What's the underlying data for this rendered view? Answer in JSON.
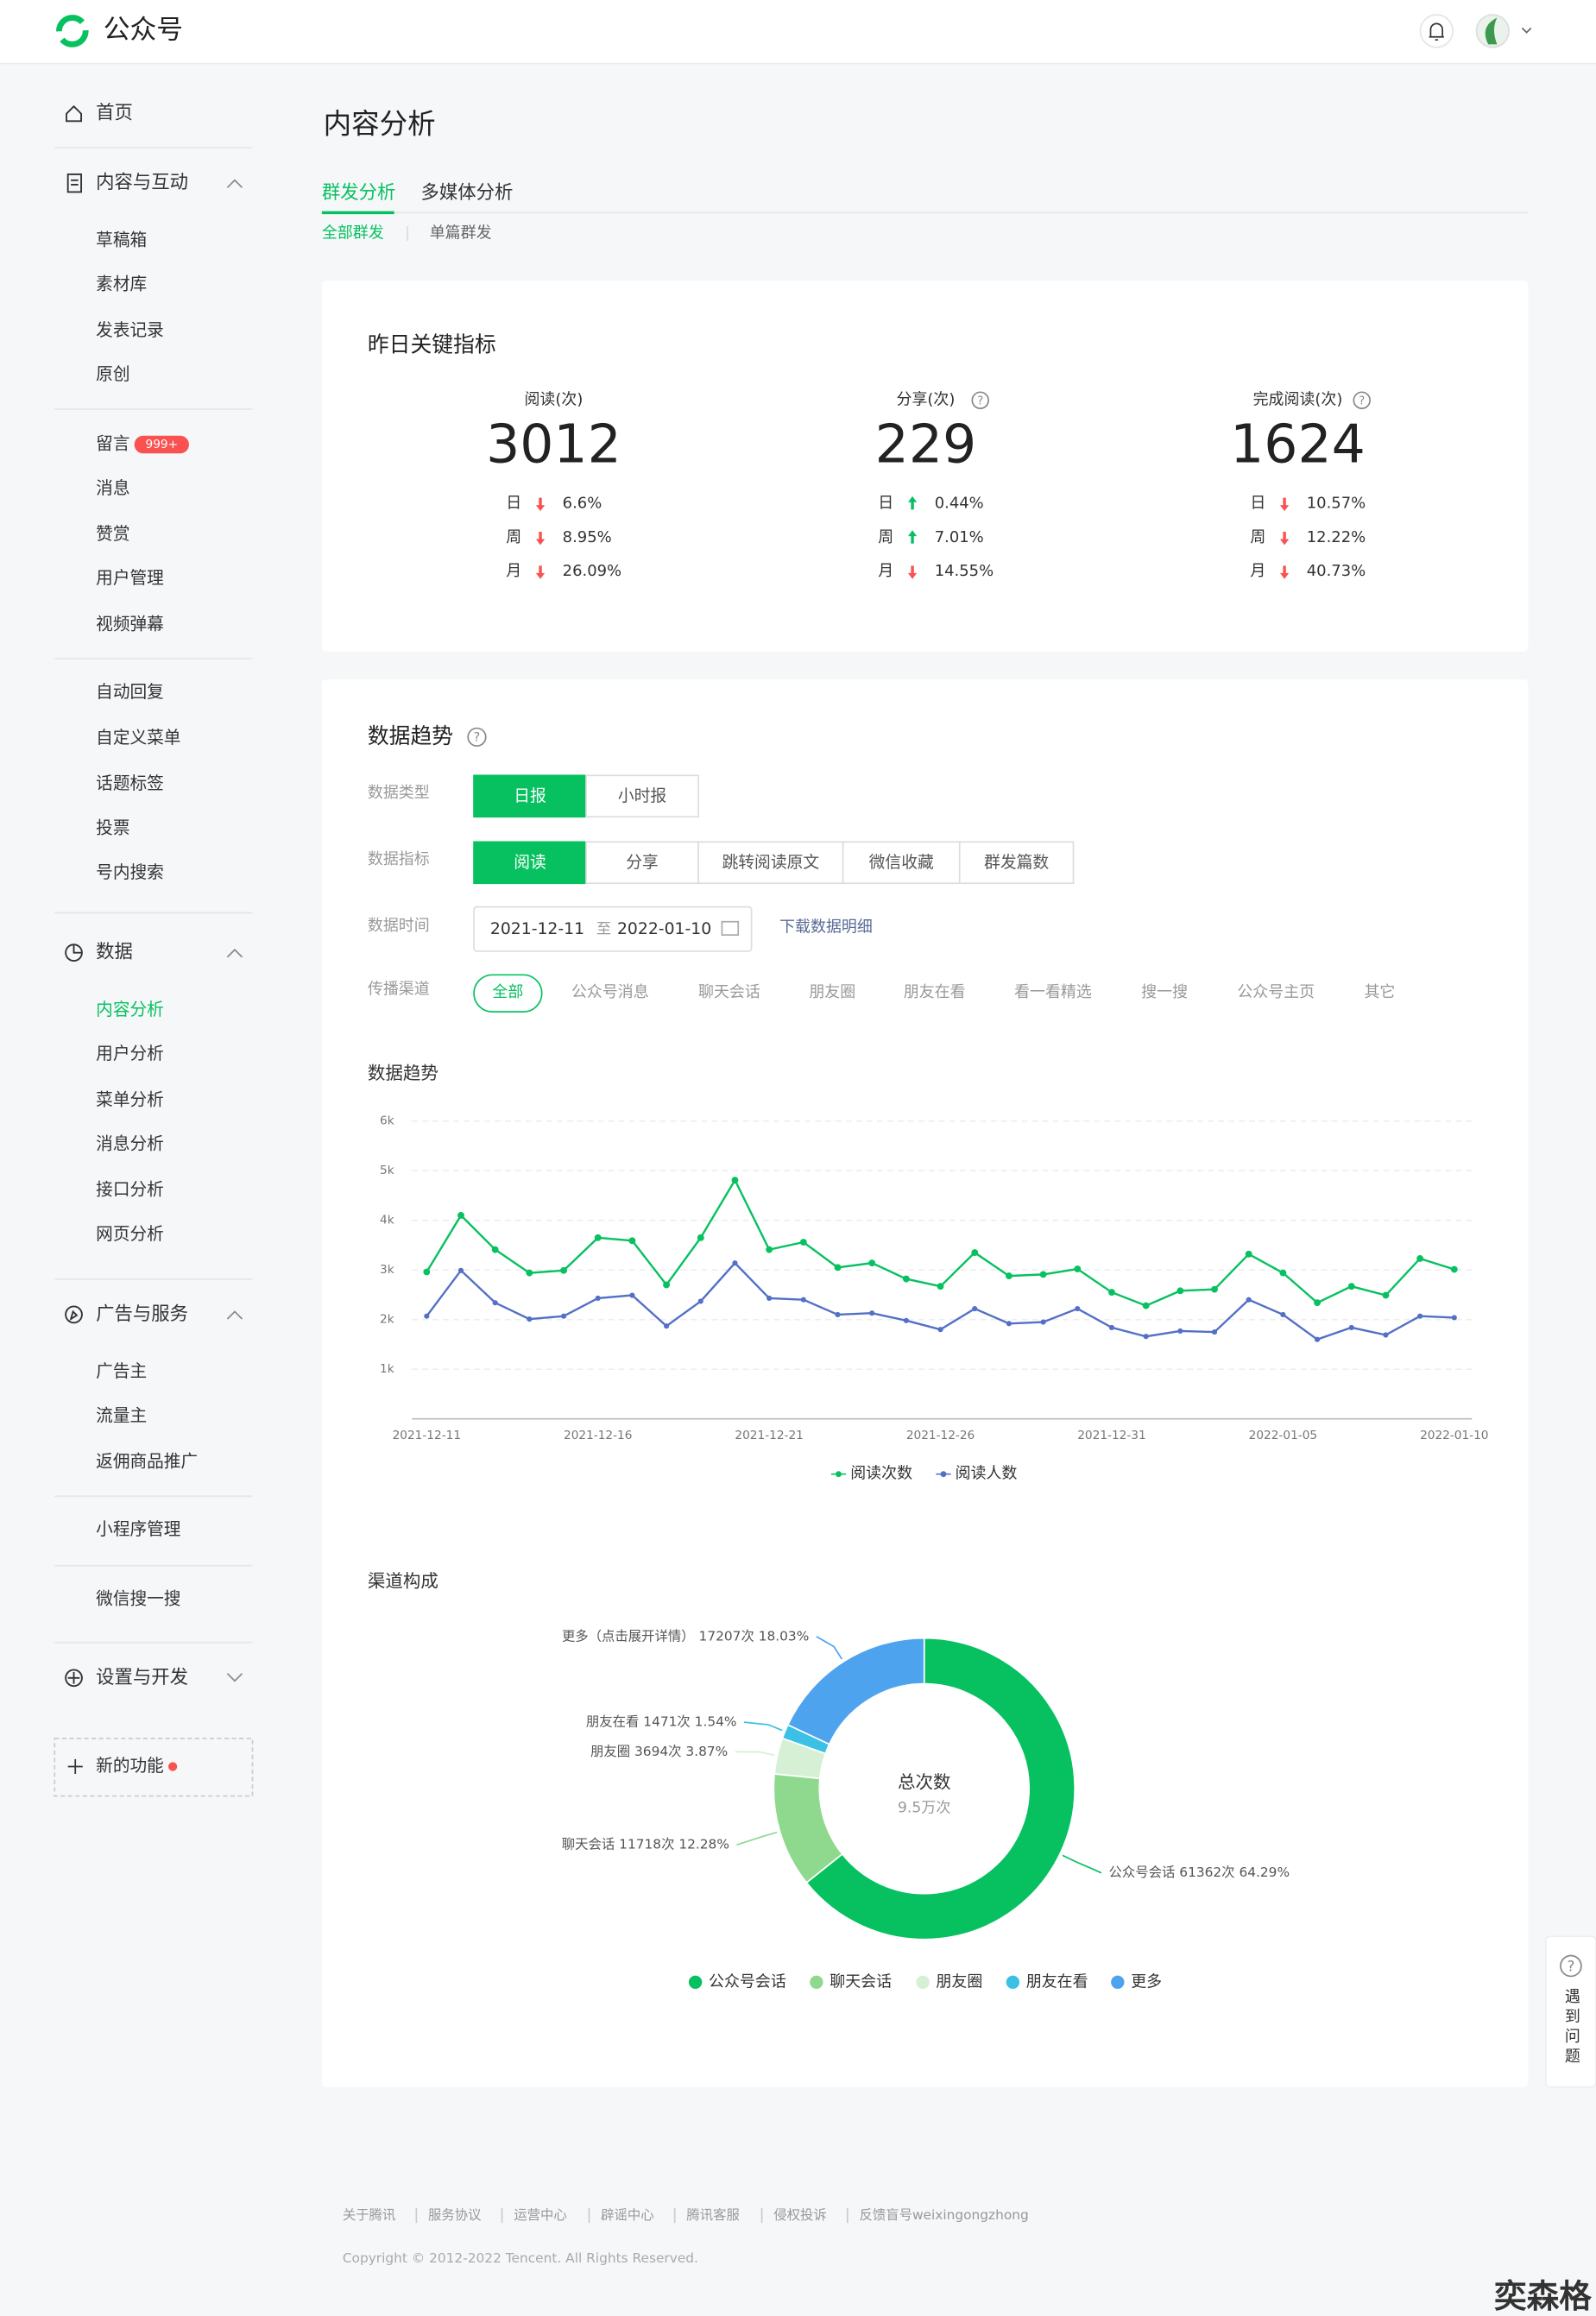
{
  "header": {
    "logo": "公众号"
  },
  "nav": [
    {
      "label": "首页"
    },
    {
      "label": "内容与互动"
    },
    {
      "label": "草稿箱"
    },
    {
      "label": "素材库"
    },
    {
      "label": "发表记录"
    },
    {
      "label": "原创"
    },
    {
      "label": "留言",
      "badge": "999+"
    },
    {
      "label": "消息"
    },
    {
      "label": "赞赏"
    },
    {
      "label": "用户管理"
    },
    {
      "label": "视频弹幕"
    },
    {
      "label": "自动回复"
    },
    {
      "label": "自定义菜单"
    },
    {
      "label": "话题标签"
    },
    {
      "label": "投票"
    },
    {
      "label": "号内搜索"
    },
    {
      "label": "数据"
    },
    {
      "label": "内容分析",
      "active": true
    },
    {
      "label": "用户分析"
    },
    {
      "label": "菜单分析"
    },
    {
      "label": "消息分析"
    },
    {
      "label": "接口分析"
    },
    {
      "label": "网页分析"
    },
    {
      "label": "广告与服务"
    },
    {
      "label": "广告主"
    },
    {
      "label": "流量主"
    },
    {
      "label": "返佣商品推广"
    },
    {
      "label": "小程序管理"
    },
    {
      "label": "微信搜一搜"
    },
    {
      "label": "设置与开发"
    },
    {
      "label": "新的功能"
    }
  ],
  "page": {
    "title": "内容分析",
    "tabs": [
      "群发分析",
      "多媒体分析"
    ],
    "subtabs": [
      "全部群发",
      "单篇群发"
    ]
  },
  "key_metrics": {
    "title": "昨日关键指标",
    "items": [
      {
        "label": "阅读(次)",
        "value": 3012,
        "help": false,
        "changes": [
          {
            "period": "日",
            "direction": "down",
            "value": "6.6%"
          },
          {
            "period": "周",
            "direction": "down",
            "value": "8.95%"
          },
          {
            "period": "月",
            "direction": "down",
            "value": "26.09%"
          }
        ]
      },
      {
        "label": "分享(次)",
        "value": 229,
        "help": true,
        "changes": [
          {
            "period": "日",
            "direction": "up",
            "value": "0.44%"
          },
          {
            "period": "周",
            "direction": "up",
            "value": "7.01%"
          },
          {
            "period": "月",
            "direction": "down",
            "value": "14.55%"
          }
        ]
      },
      {
        "label": "完成阅读(次)",
        "value": 1624,
        "help": true,
        "changes": [
          {
            "period": "日",
            "direction": "down",
            "value": "10.57%"
          },
          {
            "period": "周",
            "direction": "down",
            "value": "12.22%"
          },
          {
            "period": "月",
            "direction": "down",
            "value": "40.73%"
          }
        ]
      }
    ]
  },
  "trend": {
    "title": "数据趋势",
    "filters": [
      {
        "label": "数据类型",
        "options": [
          "日报",
          "小时报"
        ]
      },
      {
        "label": "数据指标",
        "options": [
          "阅读",
          "分享",
          "跳转阅读原文",
          "微信收藏",
          "群发篇数"
        ]
      },
      {
        "label": "数据时间",
        "start": "2021-12-11",
        "to": "至",
        "end": "2022-01-10",
        "link": "下载数据明细"
      },
      {
        "label": "传播渠道",
        "options": [
          "全部",
          "公众号消息",
          "聊天会话",
          "朋友圈",
          "朋友在看",
          "看一看精选",
          "搜一搜",
          "公众号主页",
          "其它"
        ]
      }
    ]
  },
  "chart_data": [
    {
      "type": "line",
      "title": "数据趋势",
      "categories": [
        "2021-12-11",
        null,
        null,
        null,
        null,
        "2021-12-16",
        null,
        null,
        null,
        null,
        "2021-12-21",
        null,
        null,
        null,
        null,
        "2021-12-26",
        null,
        null,
        null,
        null,
        "2021-12-31",
        null,
        null,
        null,
        null,
        "2022-01-05",
        null,
        null,
        null,
        null,
        "2022-01-10"
      ],
      "series": [
        {
          "name": "阅读次数",
          "color": "#07c160",
          "values": [
            2960,
            4100,
            3410,
            2940,
            2990,
            3650,
            3590,
            2700,
            3650,
            4810,
            3410,
            3560,
            3050,
            3140,
            2820,
            2670,
            3350,
            2880,
            2910,
            3020,
            2550,
            2280,
            2580,
            2610,
            3320,
            2940,
            2340,
            2670,
            2490,
            3230,
            3012
          ]
        },
        {
          "name": "阅读人数",
          "color": "#5470c6",
          "values": [
            2070,
            2990,
            2340,
            2010,
            2070,
            2430,
            2490,
            1870,
            2370,
            3140,
            2430,
            2400,
            2100,
            2130,
            1980,
            1800,
            2220,
            1920,
            1950,
            2220,
            1840,
            1660,
            1770,
            1750,
            2400,
            2100,
            1600,
            1840,
            1690,
            2070,
            2040
          ]
        }
      ],
      "ylim": [
        0,
        6000
      ],
      "yticks": [
        {
          "value": 1000,
          "label": "1k"
        },
        {
          "value": 2000,
          "label": "2k"
        },
        {
          "value": 3000,
          "label": "3k"
        },
        {
          "value": 4000,
          "label": "4k"
        },
        {
          "value": 5000,
          "label": "5k"
        },
        {
          "value": 6000,
          "label": "6k"
        }
      ],
      "grid": true
    },
    {
      "type": "pie",
      "title": "渠道构成",
      "categories": [
        "公众号会话",
        "聊天会话",
        "朋友圈",
        "朋友在看",
        "更多"
      ],
      "values": [
        61362,
        11718,
        3694,
        1471,
        17207
      ],
      "value_labels": [
        "公众号会话 61362次 64.29%",
        "聊天会话 11718次 12.28%",
        "朋友圈 3694次 3.87%",
        "朋友在看 1471次 1.54%",
        "更多（点击展开详情） 17207次 18.03%"
      ],
      "colors": [
        "#07c160",
        "#8fd98f",
        "#d5f0d5",
        "#3cc1e6",
        "#4ea3ef"
      ],
      "center_title": "总次数",
      "center_value": "9.5万次"
    }
  ],
  "help_float": "遇到问题",
  "footer": {
    "links": [
      "关于腾讯",
      "服务协议",
      "运营中心",
      "辟谣中心",
      "腾讯客服",
      "侵权投诉",
      "反馈盲号weixingongzhong"
    ],
    "copyright": "Copyright © 2012-2022 Tencent. All Rights Reserved."
  },
  "watermark": "奕森格"
}
